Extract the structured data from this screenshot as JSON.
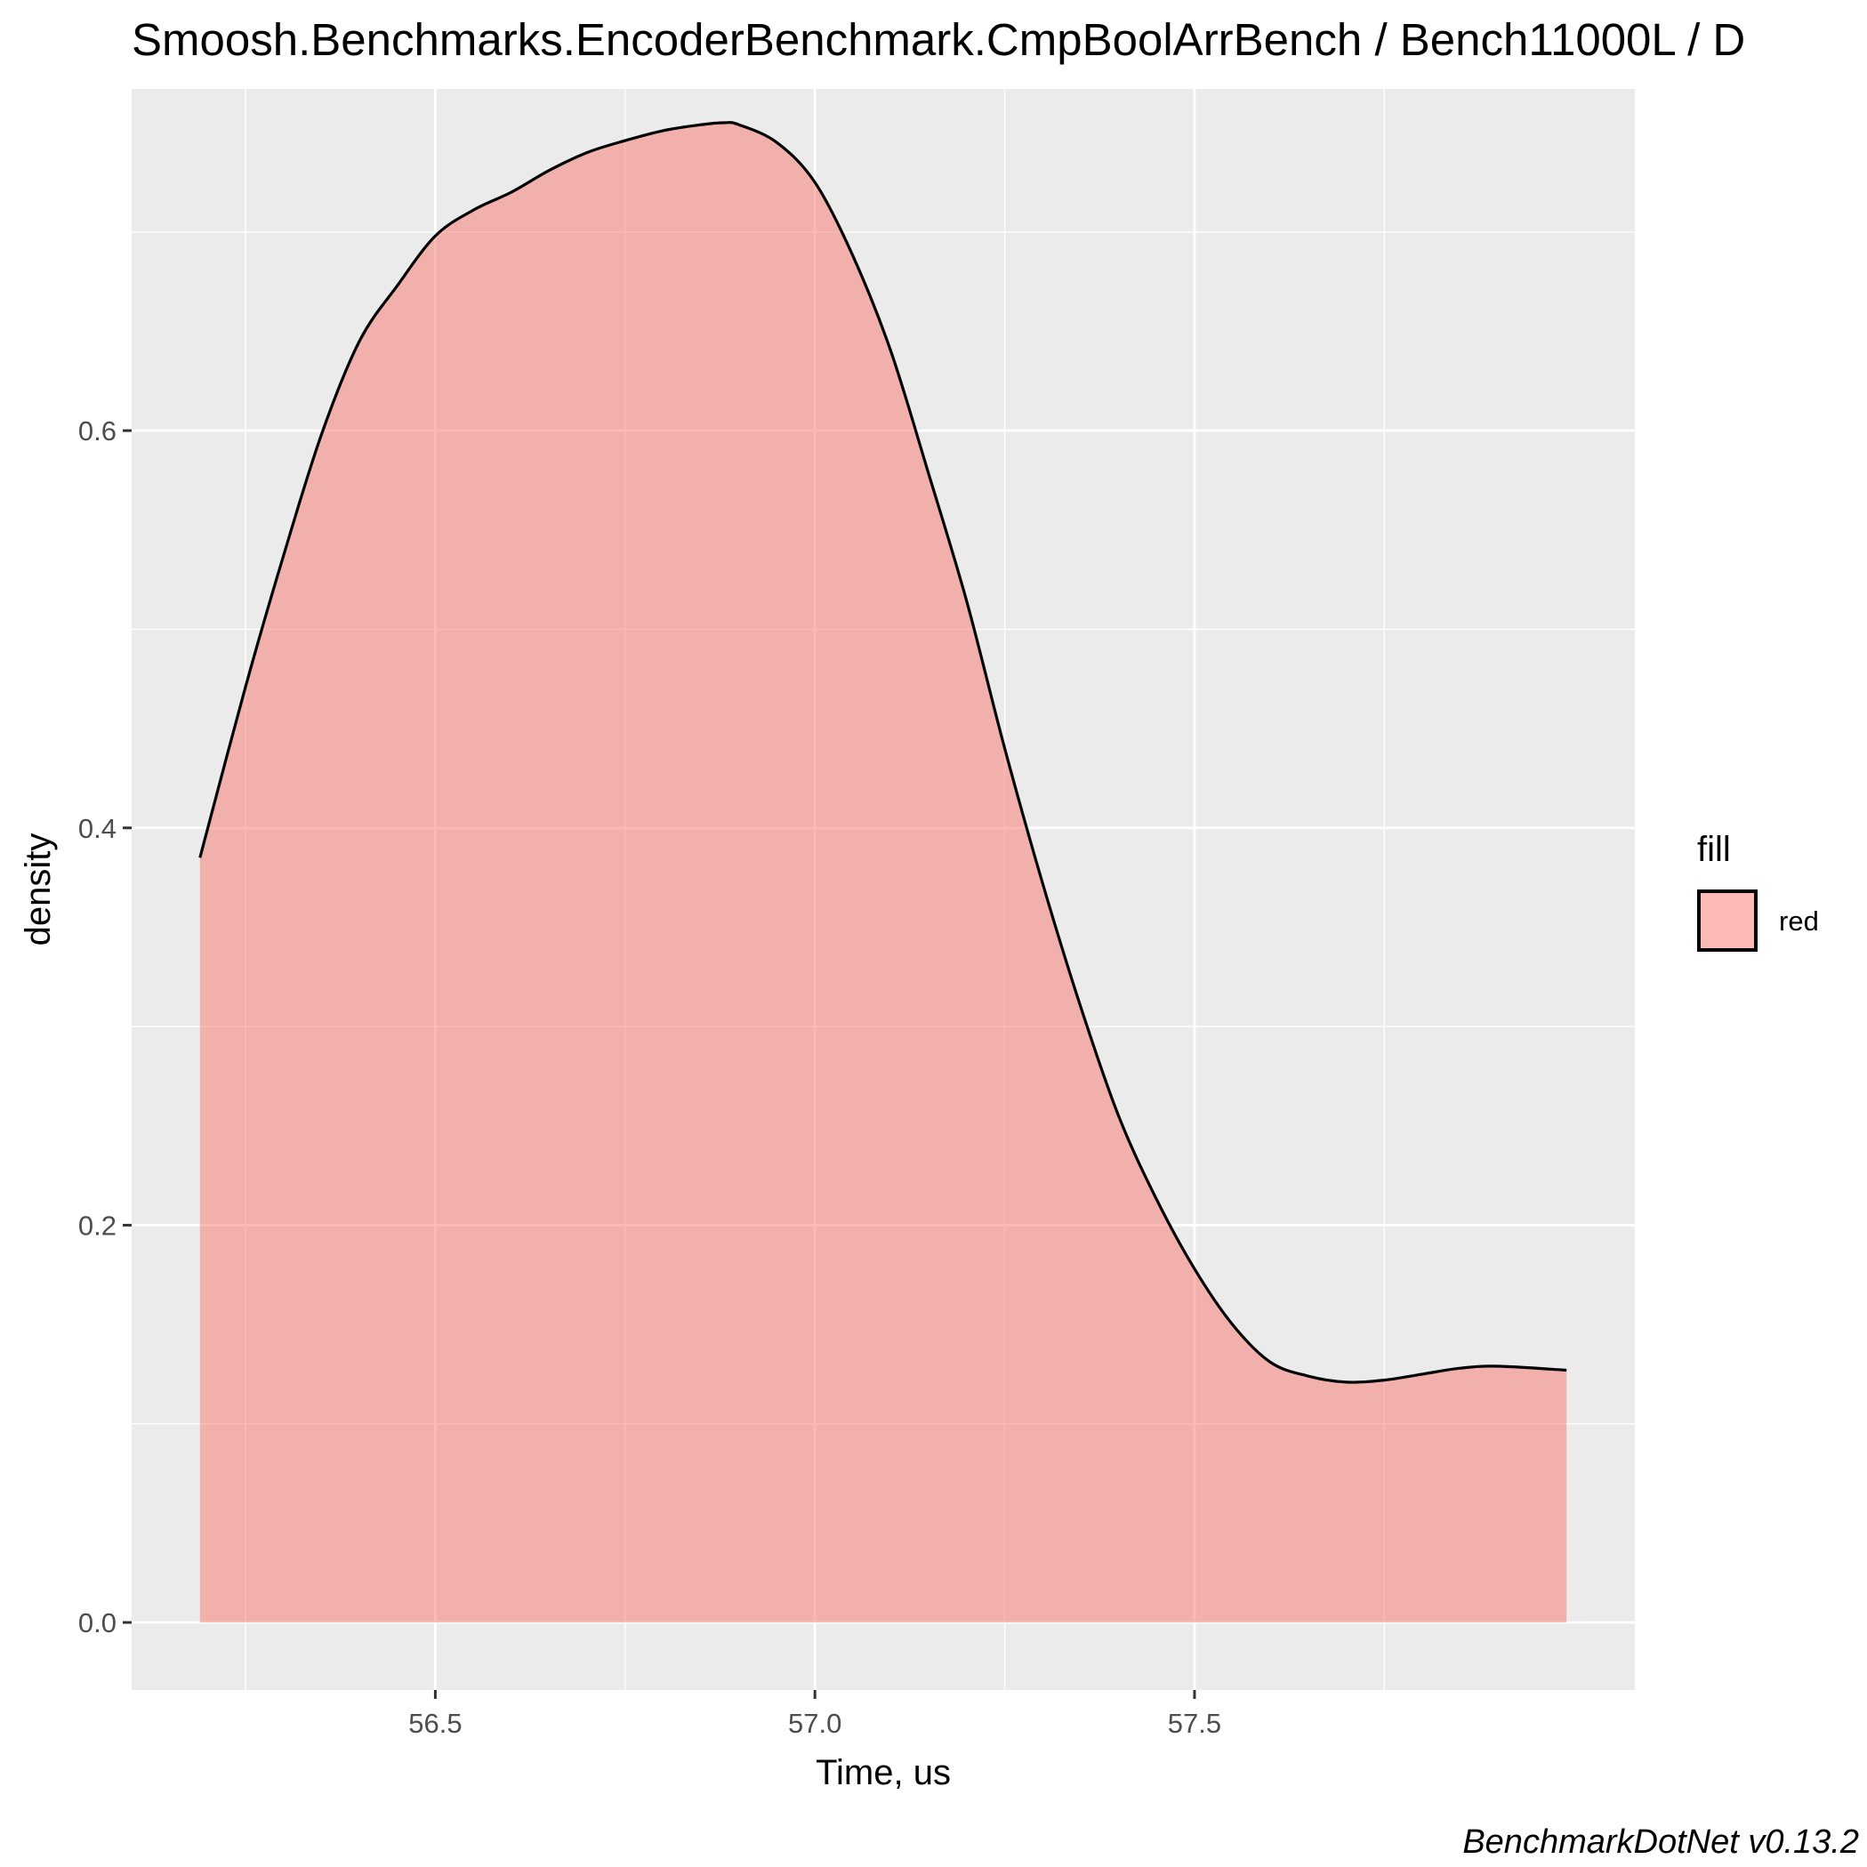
{
  "chart_data": {
    "type": "area",
    "title": "Smoosh.Benchmarks.EncoderBenchmark.CmpBoolArrBench / Bench11000L / D",
    "xlabel": "Time, us",
    "ylabel": "density",
    "caption": "BenchmarkDotNet v0.13.2",
    "xlim": [
      56.1,
      58.08
    ],
    "ylim": [
      -0.034,
      0.772
    ],
    "x_major_ticks": [
      56.5,
      57.0,
      57.5
    ],
    "x_minor_ticks": [
      56.25,
      56.75,
      57.25,
      57.75
    ],
    "x_tick_labels": [
      "56.5",
      "57.0",
      "57.5"
    ],
    "y_major_ticks": [
      0.0,
      0.2,
      0.4,
      0.6
    ],
    "y_minor_ticks": [
      0.1,
      0.3,
      0.5,
      0.7
    ],
    "y_tick_labels": [
      "0.0",
      "0.2",
      "0.4",
      "0.6"
    ],
    "grid": true,
    "legend": {
      "title": "fill",
      "position": "right",
      "entries": [
        {
          "label": "red",
          "color": "#F8766D"
        }
      ]
    },
    "colors": {
      "panel_background": "#EBEBEB",
      "grid_line": "#FFFFFF",
      "fill": "#F8766D",
      "fill_opacity": 0.5,
      "line": "#000000",
      "tick_text": "#4D4D4D"
    },
    "series": [
      {
        "name": "red",
        "x": [
          56.19,
          56.25,
          56.3,
          56.35,
          56.4,
          56.45,
          56.5,
          56.55,
          56.6,
          56.65,
          56.7,
          56.75,
          56.8,
          56.85,
          56.88,
          56.9,
          56.95,
          57.0,
          57.05,
          57.1,
          57.15,
          57.2,
          57.25,
          57.3,
          57.35,
          57.4,
          57.45,
          57.5,
          57.55,
          57.6,
          57.65,
          57.7,
          57.75,
          57.8,
          57.85,
          57.9,
          57.99
        ],
        "y": [
          0.385,
          0.471,
          0.537,
          0.598,
          0.645,
          0.673,
          0.698,
          0.711,
          0.72,
          0.731,
          0.74,
          0.746,
          0.751,
          0.754,
          0.755,
          0.754,
          0.745,
          0.725,
          0.688,
          0.64,
          0.578,
          0.514,
          0.44,
          0.372,
          0.31,
          0.255,
          0.213,
          0.178,
          0.15,
          0.131,
          0.124,
          0.121,
          0.122,
          0.125,
          0.128,
          0.129,
          0.127
        ]
      }
    ]
  }
}
